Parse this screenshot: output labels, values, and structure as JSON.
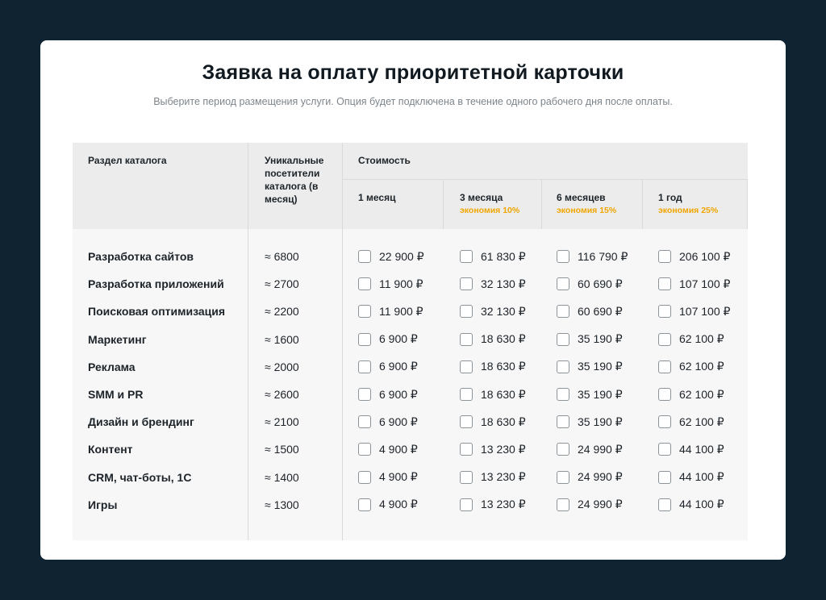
{
  "title": "Заявка на оплату приоритетной карточки",
  "subtitle": "Выберите период размещения услуги. Опция будет подключена в течение одного рабочего дня после оплаты.",
  "table": {
    "headers": {
      "category": "Раздел каталога",
      "visitors": "Уникальные посетители каталога (в месяц)",
      "cost": "Стоимость"
    },
    "periods": [
      {
        "label": "1 месяц",
        "saving": ""
      },
      {
        "label": "3 месяца",
        "saving": "экономия 10%"
      },
      {
        "label": "6 месяцев",
        "saving": "экономия 15%"
      },
      {
        "label": "1 год",
        "saving": "экономия 25%"
      }
    ],
    "rows": [
      {
        "category": "Разработка сайтов",
        "visitors": "≈ 6800",
        "prices": [
          "22 900 ₽",
          "61 830 ₽",
          "116 790 ₽",
          "206 100 ₽"
        ]
      },
      {
        "category": "Разработка приложений",
        "visitors": "≈ 2700",
        "prices": [
          "11 900 ₽",
          "32 130 ₽",
          "60 690 ₽",
          "107 100 ₽"
        ]
      },
      {
        "category": "Поисковая оптимизация",
        "visitors": "≈ 2200",
        "prices": [
          "11 900 ₽",
          "32 130 ₽",
          "60 690 ₽",
          "107 100 ₽"
        ]
      },
      {
        "category": "Маркетинг",
        "visitors": "≈ 1600",
        "prices": [
          "6 900 ₽",
          "18 630 ₽",
          "35 190 ₽",
          "62 100 ₽"
        ]
      },
      {
        "category": "Реклама",
        "visitors": "≈ 2000",
        "prices": [
          "6 900 ₽",
          "18 630 ₽",
          "35 190 ₽",
          "62 100 ₽"
        ]
      },
      {
        "category": "SMM и PR",
        "visitors": "≈ 2600",
        "prices": [
          "6 900 ₽",
          "18 630 ₽",
          "35 190 ₽",
          "62 100 ₽"
        ]
      },
      {
        "category": "Дизайн и брендинг",
        "visitors": "≈ 2100",
        "prices": [
          "6 900 ₽",
          "18 630 ₽",
          "35 190 ₽",
          "62 100 ₽"
        ]
      },
      {
        "category": "Контент",
        "visitors": "≈ 1500",
        "prices": [
          "4 900 ₽",
          "13 230 ₽",
          "24 990 ₽",
          "44 100 ₽"
        ]
      },
      {
        "category": "CRM, чат-боты, 1С",
        "visitors": "≈ 1400",
        "prices": [
          "4 900 ₽",
          "13 230 ₽",
          "24 990 ₽",
          "44 100 ₽"
        ]
      },
      {
        "category": "Игры",
        "visitors": "≈ 1300",
        "prices": [
          "4 900 ₽",
          "13 230 ₽",
          "24 990 ₽",
          "44 100 ₽"
        ]
      }
    ]
  },
  "colors": {
    "page_background": "#0f2330",
    "card_background": "#ffffff",
    "header_background": "#ececec",
    "body_background": "#f8f7f8",
    "saving_accent": "#f0a500"
  }
}
